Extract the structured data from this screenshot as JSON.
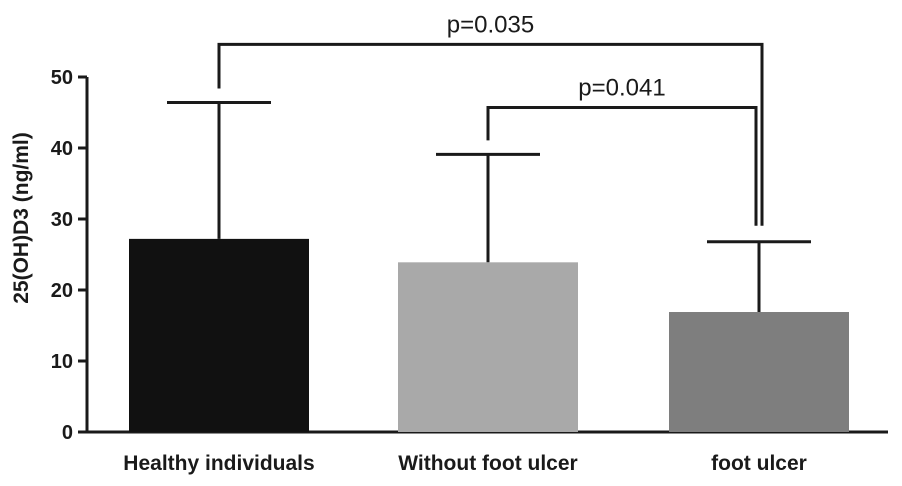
{
  "chart_data": {
    "type": "bar",
    "title": "",
    "xlabel": "",
    "ylabel": "25(OH)D3 (ng/ml)",
    "ylim": [
      0,
      50
    ],
    "yticks": [
      0,
      10,
      20,
      30,
      40,
      50
    ],
    "grid": false,
    "legend": "none",
    "categories": [
      "Healthy individuals",
      "Without foot ulcer",
      "foot ulcer"
    ],
    "values": [
      27.2,
      23.9,
      16.9
    ],
    "error_upper": [
      46.4,
      39.1,
      26.8
    ],
    "bar_colors": [
      "#111111",
      "#a9a9a9",
      "#7e7e7e"
    ],
    "comparisons": [
      {
        "from": 0,
        "to": 2,
        "label": "p=0.035",
        "bracket_y": 54.6
      },
      {
        "from": 1,
        "to": 2,
        "label": "p=0.041",
        "bracket_y": 45.7
      }
    ]
  }
}
